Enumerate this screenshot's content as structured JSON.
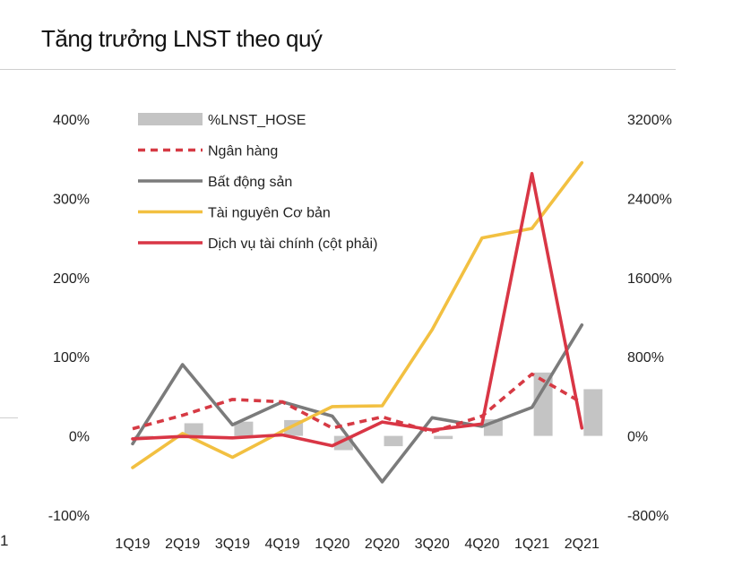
{
  "header": {
    "title": "Tăng trưởng LNST theo quý"
  },
  "stray_label": "1",
  "colors": {
    "bars": "#c4c4c4",
    "bank": "#d63a44",
    "real_estate": "#7b7b7b",
    "resources": "#f2c041",
    "financial": "#d93645"
  },
  "chart_data": {
    "type": "bar+line",
    "title": "Tăng trưởng LNST theo quý",
    "categories": [
      "1Q19",
      "2Q19",
      "3Q19",
      "4Q19",
      "1Q20",
      "2Q20",
      "3Q20",
      "4Q20",
      "1Q21",
      "2Q21"
    ],
    "left_axis": {
      "min": -100,
      "max": 400,
      "ticks": [
        "400%",
        "300%",
        "200%",
        "100%",
        "0%",
        "-100%"
      ]
    },
    "right_axis": {
      "min": -800,
      "max": 3200,
      "ticks": [
        "3200%",
        "2400%",
        "1600%",
        "800%",
        "0%",
        "-800%"
      ]
    },
    "series": [
      {
        "name": "%LNST_HOSE",
        "type": "bar",
        "axis": "left",
        "values": [
          -2,
          16,
          18,
          20,
          -18,
          -13,
          -4,
          21,
          80,
          59
        ]
      },
      {
        "name": "Ngân hàng",
        "type": "line",
        "style": "dashed",
        "axis": "left",
        "values": [
          9,
          26,
          46,
          43,
          10,
          24,
          5,
          25,
          78,
          42
        ]
      },
      {
        "name": "Bất động sản",
        "type": "line",
        "axis": "left",
        "values": [
          -10,
          90,
          14,
          43,
          25,
          -58,
          23,
          12,
          36,
          140
        ]
      },
      {
        "name": "Tài nguyên Cơ bản",
        "type": "line",
        "axis": "left",
        "values": [
          -40,
          3,
          -27,
          6,
          37,
          38,
          134,
          250,
          262,
          345
        ]
      },
      {
        "name": "Dịch vụ tài chính (cột phải)",
        "type": "line",
        "axis": "right",
        "values": [
          -30,
          -5,
          -20,
          10,
          -100,
          140,
          60,
          120,
          2650,
          80
        ]
      }
    ],
    "legend": [
      "%LNST_HOSE",
      "Ngân hàng",
      "Bất động sản",
      "Tài nguyên Cơ bản",
      "Dịch vụ tài chính (cột phải)"
    ]
  }
}
